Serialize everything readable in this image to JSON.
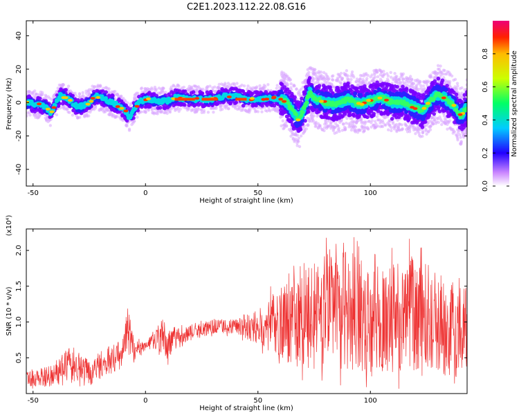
{
  "title": "C2E1.2023.112.22.08.G16",
  "chart_data": [
    {
      "type": "heatmap",
      "xlabel": "Height of straight line (km)",
      "ylabel": "Frequency (Hz)",
      "xlim": [
        -53,
        143
      ],
      "ylim": [
        -50,
        49
      ],
      "xticks": [
        -50,
        0,
        50,
        100
      ],
      "yticks": [
        -40,
        -20,
        0,
        20,
        40
      ],
      "colorbar": {
        "label": "Normalized spectral amplitude",
        "range": [
          0.0,
          1.0
        ],
        "ticks": [
          "0.0",
          "0.2",
          "0.4",
          "0.6",
          "0.8"
        ]
      },
      "ridge_track": [
        [
          -53,
          0
        ],
        [
          -45,
          -2
        ],
        [
          -42,
          -6
        ],
        [
          -38,
          4
        ],
        [
          -35,
          3
        ],
        [
          -30,
          -3
        ],
        [
          -25,
          0
        ],
        [
          -22,
          4
        ],
        [
          -18,
          2
        ],
        [
          -15,
          0
        ],
        [
          -12,
          -2
        ],
        [
          -9,
          -5
        ],
        [
          -7,
          -9
        ],
        [
          -5,
          -4
        ],
        [
          -3,
          0
        ],
        [
          0,
          2
        ],
        [
          5,
          1
        ],
        [
          10,
          1
        ],
        [
          13,
          3
        ],
        [
          20,
          2
        ],
        [
          30,
          2
        ],
        [
          35,
          4
        ],
        [
          40,
          4
        ],
        [
          45,
          2
        ],
        [
          50,
          2
        ],
        [
          55,
          3
        ],
        [
          60,
          2
        ],
        [
          63,
          0
        ],
        [
          66,
          -6
        ],
        [
          68,
          -10
        ],
        [
          70,
          -5
        ],
        [
          73,
          6
        ],
        [
          75,
          3
        ],
        [
          80,
          0
        ],
        [
          85,
          -1
        ],
        [
          90,
          2
        ],
        [
          95,
          -1
        ],
        [
          100,
          1
        ],
        [
          105,
          3
        ],
        [
          110,
          0
        ],
        [
          115,
          0
        ],
        [
          120,
          -3
        ],
        [
          123,
          -5
        ],
        [
          126,
          0
        ],
        [
          130,
          5
        ],
        [
          133,
          3
        ],
        [
          137,
          -2
        ],
        [
          140,
          -8
        ],
        [
          143,
          -3
        ]
      ]
    },
    {
      "type": "line",
      "xlabel": "Height of straight line (km)",
      "ylabel": "SNR (10 * v/v)",
      "scale_label": "(x10⁴)",
      "xlim": [
        -53,
        143
      ],
      "ylim": [
        0.0,
        2.3
      ],
      "xticks": [
        -50,
        0,
        50,
        100
      ],
      "yticks": [
        "0.5",
        "1.0",
        "1.5",
        "2.0"
      ],
      "color": "#ee3333",
      "envelope": [
        [
          -53,
          0.05,
          0.35
        ],
        [
          -40,
          0.05,
          0.45
        ],
        [
          -35,
          0.15,
          0.75
        ],
        [
          -30,
          0.1,
          0.6
        ],
        [
          -25,
          0.05,
          0.55
        ],
        [
          -20,
          0.15,
          0.65
        ],
        [
          -15,
          0.2,
          0.75
        ],
        [
          -10,
          0.35,
          0.85
        ],
        [
          -8,
          0.5,
          1.3
        ],
        [
          -5,
          0.4,
          0.8
        ],
        [
          0,
          0.55,
          0.75
        ],
        [
          5,
          0.6,
          0.95
        ],
        [
          8,
          0.3,
          1.35
        ],
        [
          9,
          0.2,
          0.9
        ],
        [
          12,
          0.6,
          1.0
        ],
        [
          20,
          0.7,
          1.0
        ],
        [
          30,
          0.8,
          1.05
        ],
        [
          40,
          0.8,
          1.1
        ],
        [
          50,
          0.6,
          1.25
        ],
        [
          60,
          0.3,
          1.7
        ],
        [
          70,
          0.1,
          2.0
        ],
        [
          80,
          0.05,
          2.25
        ],
        [
          90,
          0.05,
          2.3
        ],
        [
          100,
          0.05,
          2.0
        ],
        [
          110,
          0.05,
          2.1
        ],
        [
          120,
          0.05,
          2.2
        ],
        [
          130,
          0.1,
          1.9
        ],
        [
          143,
          0.15,
          1.7
        ]
      ]
    }
  ]
}
